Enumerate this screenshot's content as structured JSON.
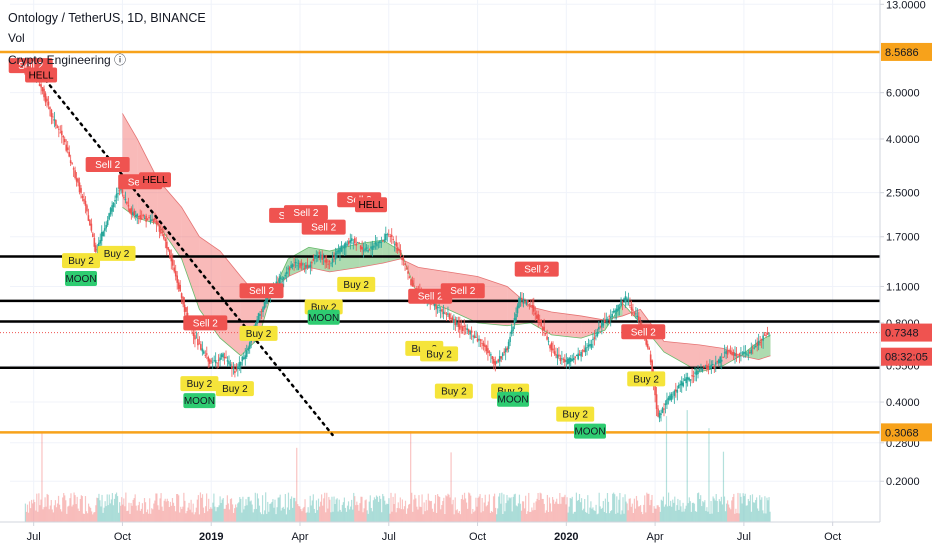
{
  "header": {
    "title": "Ontology / TetherUS, 1D, BINANCE",
    "volume_label": "Vol",
    "indicator_label": "Crypto Engineering ⓘ"
  },
  "chart_data": {
    "type": "candlestick",
    "scale": "log",
    "ylim": [
      0.14,
      13.5
    ],
    "y_ticks": [
      "13.0000",
      "8.5686",
      "6.0000",
      "4.0000",
      "2.5000",
      "1.7000",
      "1.1000",
      "0.8000",
      "0.7348",
      "0.5500",
      "0.4000",
      "0.3068",
      "0.2800",
      "0.2000"
    ],
    "y_tick_values": [
      13.0,
      6.0,
      4.0,
      2.5,
      1.7,
      1.1,
      0.8,
      0.55,
      0.4,
      0.28,
      0.2
    ],
    "x_ticks": [
      {
        "label": "Jul",
        "t": 0
      },
      {
        "label": "Oct",
        "t": 3
      },
      {
        "label": "2019",
        "t": 6
      },
      {
        "label": "Apr",
        "t": 9
      },
      {
        "label": "Jul",
        "t": 12
      },
      {
        "label": "Oct",
        "t": 15
      },
      {
        "label": "2020",
        "t": 18
      },
      {
        "label": "Apr",
        "t": 21
      },
      {
        "label": "Jul",
        "t": 24
      },
      {
        "label": "Oct",
        "t": 27
      }
    ],
    "price_badges": [
      {
        "label": "8.5686",
        "value": 8.5686,
        "color": "#f7a21b"
      },
      {
        "label": "0.7348",
        "value": 0.7348,
        "color": "#ef5350"
      },
      {
        "label": "08:32:05",
        "value": 0.595,
        "color": "#ef5350"
      },
      {
        "label": "0.3068",
        "value": 0.3068,
        "color": "#f7a21b"
      }
    ],
    "horizontal_lines": [
      {
        "value": 8.5686,
        "color": "#f7a21b"
      },
      {
        "value": 1.43,
        "color": "#000000"
      },
      {
        "value": 0.97,
        "color": "#000000"
      },
      {
        "value": 0.81,
        "color": "#000000"
      },
      {
        "value": 0.54,
        "color": "#000000"
      },
      {
        "value": 0.3068,
        "color": "#f7a21b"
      }
    ],
    "price_line_value": 0.7348,
    "price_series": [
      [
        -0.3,
        7.6
      ],
      [
        0.2,
        6.5
      ],
      [
        0.6,
        4.9
      ],
      [
        1.0,
        4.0
      ],
      [
        1.4,
        2.9
      ],
      [
        1.8,
        2.1
      ],
      [
        2.1,
        1.5
      ],
      [
        2.5,
        2.0
      ],
      [
        2.9,
        2.6
      ],
      [
        3.3,
        2.1
      ],
      [
        3.7,
        2.0
      ],
      [
        4.1,
        1.95
      ],
      [
        4.4,
        1.7
      ],
      [
        4.8,
        1.2
      ],
      [
        5.2,
        0.82
      ],
      [
        5.6,
        0.65
      ],
      [
        6.0,
        0.56
      ],
      [
        6.4,
        0.6
      ],
      [
        6.8,
        0.52
      ],
      [
        7.2,
        0.62
      ],
      [
        7.6,
        0.85
      ],
      [
        8.0,
        1.05
      ],
      [
        8.4,
        1.2
      ],
      [
        8.8,
        1.35
      ],
      [
        9.2,
        1.3
      ],
      [
        9.6,
        1.45
      ],
      [
        10.0,
        1.35
      ],
      [
        10.4,
        1.55
      ],
      [
        10.8,
        1.65
      ],
      [
        11.2,
        1.5
      ],
      [
        11.6,
        1.6
      ],
      [
        12.0,
        1.75
      ],
      [
        12.4,
        1.45
      ],
      [
        12.8,
        1.1
      ],
      [
        13.2,
        1.0
      ],
      [
        13.6,
        0.92
      ],
      [
        14.0,
        0.85
      ],
      [
        14.4,
        0.77
      ],
      [
        14.8,
        0.73
      ],
      [
        15.2,
        0.66
      ],
      [
        15.6,
        0.56
      ],
      [
        16.0,
        0.64
      ],
      [
        16.4,
        0.98
      ],
      [
        16.8,
        0.94
      ],
      [
        17.2,
        0.76
      ],
      [
        17.6,
        0.6
      ],
      [
        18.0,
        0.57
      ],
      [
        18.4,
        0.6
      ],
      [
        18.8,
        0.66
      ],
      [
        19.2,
        0.8
      ],
      [
        19.6,
        0.88
      ],
      [
        20.0,
        1.0
      ],
      [
        20.4,
        0.84
      ],
      [
        20.8,
        0.62
      ],
      [
        21.1,
        0.35
      ],
      [
        21.4,
        0.4
      ],
      [
        21.8,
        0.46
      ],
      [
        22.2,
        0.5
      ],
      [
        22.6,
        0.54
      ],
      [
        23.0,
        0.55
      ],
      [
        23.4,
        0.62
      ],
      [
        23.8,
        0.6
      ],
      [
        24.2,
        0.62
      ],
      [
        24.6,
        0.7
      ],
      [
        24.9,
        0.735
      ]
    ],
    "ichimoku_cloud": [
      [
        3.0,
        5.0,
        2.2
      ],
      [
        3.5,
        4.0,
        2.0
      ],
      [
        4.2,
        2.8,
        1.9
      ],
      [
        5.0,
        2.2,
        1.4
      ],
      [
        5.6,
        1.7,
        0.9
      ],
      [
        6.3,
        1.5,
        0.7
      ],
      [
        7.0,
        1.2,
        0.6
      ],
      [
        7.6,
        1.0,
        0.7
      ],
      [
        8.0,
        1.05,
        1.0
      ],
      [
        8.6,
        1.2,
        1.4
      ],
      [
        9.3,
        1.3,
        1.55
      ],
      [
        10.0,
        1.25,
        1.5
      ],
      [
        11.0,
        1.3,
        1.6
      ],
      [
        11.8,
        1.35,
        1.65
      ],
      [
        12.4,
        1.4,
        1.5
      ],
      [
        13.0,
        1.3,
        1.0
      ],
      [
        14.0,
        1.25,
        0.9
      ],
      [
        15.0,
        1.2,
        0.8
      ],
      [
        16.0,
        1.1,
        0.78
      ],
      [
        16.8,
        0.92,
        0.8
      ],
      [
        17.5,
        0.88,
        0.72
      ],
      [
        18.5,
        0.85,
        0.7
      ],
      [
        19.3,
        0.82,
        0.75
      ],
      [
        19.9,
        0.85,
        0.95
      ],
      [
        20.5,
        0.9,
        0.8
      ],
      [
        21.3,
        0.68,
        0.62
      ],
      [
        22.5,
        0.66,
        0.52
      ],
      [
        23.3,
        0.64,
        0.55
      ],
      [
        23.9,
        0.6,
        0.6
      ],
      [
        24.5,
        0.58,
        0.68
      ],
      [
        24.9,
        0.6,
        0.72
      ]
    ],
    "trendline": {
      "from": [
        0.4,
        6.7
      ],
      "to": [
        10.1,
        0.3
      ],
      "style": "dotted",
      "color": "#000000"
    },
    "signals": [
      {
        "label": "Sell 2",
        "kind": "sell",
        "t": -0.1,
        "price": 7.6
      },
      {
        "label": "HELL",
        "kind": "hell",
        "t": 0.25,
        "price": 7.0
      },
      {
        "label": "Sell 2",
        "kind": "sell",
        "t": 2.5,
        "price": 3.2
      },
      {
        "label": "Sell 2",
        "kind": "sell",
        "t": 3.6,
        "price": 2.75
      },
      {
        "label": "HELL",
        "kind": "hell",
        "t": 4.1,
        "price": 2.8
      },
      {
        "label": "Buy 2",
        "kind": "buy",
        "t": 1.6,
        "price": 1.38
      },
      {
        "label": "MOON",
        "kind": "moon",
        "t": 1.6,
        "price": 1.18
      },
      {
        "label": "Buy 2",
        "kind": "buy",
        "t": 2.8,
        "price": 1.47
      },
      {
        "label": "Sell 2",
        "kind": "sell",
        "t": 5.8,
        "price": 0.8
      },
      {
        "label": "Buy 2",
        "kind": "buy",
        "t": 5.6,
        "price": 0.47
      },
      {
        "label": "MOON",
        "kind": "moon",
        "t": 5.6,
        "price": 0.405
      },
      {
        "label": "Buy 2",
        "kind": "buy",
        "t": 6.8,
        "price": 0.45
      },
      {
        "label": "Sell 2",
        "kind": "sell",
        "t": 7.7,
        "price": 1.06
      },
      {
        "label": "Buy 2",
        "kind": "buy",
        "t": 7.6,
        "price": 0.73
      },
      {
        "label": "Sell 2",
        "kind": "sell",
        "t": 8.7,
        "price": 2.05
      },
      {
        "label": "Sell 2",
        "kind": "sell",
        "t": 9.2,
        "price": 2.1
      },
      {
        "label": "Sell 2",
        "kind": "sell",
        "t": 9.8,
        "price": 1.85
      },
      {
        "label": "Buy 2",
        "kind": "buy",
        "t": 9.8,
        "price": 0.92
      },
      {
        "label": "MOON",
        "kind": "moon",
        "t": 9.8,
        "price": 0.84
      },
      {
        "label": "Buy 2",
        "kind": "buy",
        "t": 10.9,
        "price": 1.12
      },
      {
        "label": "Sell 2",
        "kind": "sell",
        "t": 11.0,
        "price": 2.35
      },
      {
        "label": "HELL",
        "kind": "hell",
        "t": 11.4,
        "price": 2.25
      },
      {
        "label": "Buy 2",
        "kind": "buy",
        "t": 13.2,
        "price": 0.64
      },
      {
        "label": "Sell 2",
        "kind": "sell",
        "t": 13.4,
        "price": 1.01
      },
      {
        "label": "Buy 2",
        "kind": "buy",
        "t": 13.7,
        "price": 0.61
      },
      {
        "label": "Buy 2",
        "kind": "buy",
        "t": 14.2,
        "price": 0.44
      },
      {
        "label": "Sell 2",
        "kind": "sell",
        "t": 14.5,
        "price": 1.06
      },
      {
        "label": "Buy 2",
        "kind": "buy",
        "t": 16.1,
        "price": 0.44
      },
      {
        "label": "MOON",
        "kind": "moon",
        "t": 16.2,
        "price": 0.41
      },
      {
        "label": "Sell 2",
        "kind": "sell",
        "t": 17.0,
        "price": 1.28
      },
      {
        "label": "Buy 2",
        "kind": "buy",
        "t": 18.3,
        "price": 0.36
      },
      {
        "label": "MOON",
        "kind": "moon",
        "t": 18.8,
        "price": 0.31
      },
      {
        "label": "Sell 2",
        "kind": "sell",
        "t": 20.6,
        "price": 0.74
      },
      {
        "label": "Buy 2",
        "kind": "buy",
        "t": 20.7,
        "price": 0.49
      }
    ],
    "volume": {
      "height_fraction": 0.22,
      "color_up": "#26a69a",
      "color_down": "#ef5350"
    }
  }
}
